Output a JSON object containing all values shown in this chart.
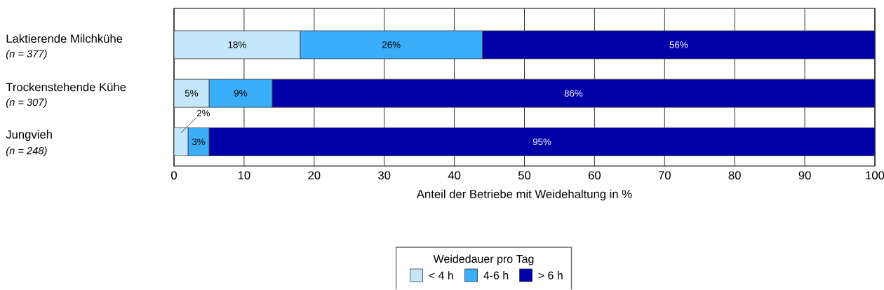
{
  "chart_data": {
    "type": "bar",
    "orientation": "horizontal",
    "stacked": true,
    "categories": [
      "Laktierende Milchkühe",
      "Trockenstehende Kühe",
      "Jungvieh"
    ],
    "annotations": [
      "(n = 377)",
      "(n = 307)",
      "(n = 248)"
    ],
    "series": [
      {
        "name": "< 4 h",
        "color": "#c5e7fc",
        "values": [
          18,
          5,
          2
        ],
        "value_labels": [
          "18%",
          "5%",
          "2%"
        ]
      },
      {
        "name": "4-6 h",
        "color": "#3aaef8",
        "values": [
          26,
          9,
          3
        ],
        "value_labels": [
          "26%",
          "9%",
          "3%"
        ]
      },
      {
        "name": "> 6 h",
        "color": "#0000a8",
        "values": [
          56,
          86,
          95
        ],
        "value_labels": [
          "56%",
          "86%",
          "95%"
        ]
      }
    ],
    "xlim": [
      0,
      100
    ],
    "xticks": [
      0,
      10,
      20,
      30,
      40,
      50,
      60,
      70,
      80,
      90,
      100
    ],
    "xlabel": "Anteil der Betriebe mit Weidehaltung in %",
    "legend_title": "Weidedauer pro Tag",
    "legend": "bottom",
    "grid": "x"
  }
}
